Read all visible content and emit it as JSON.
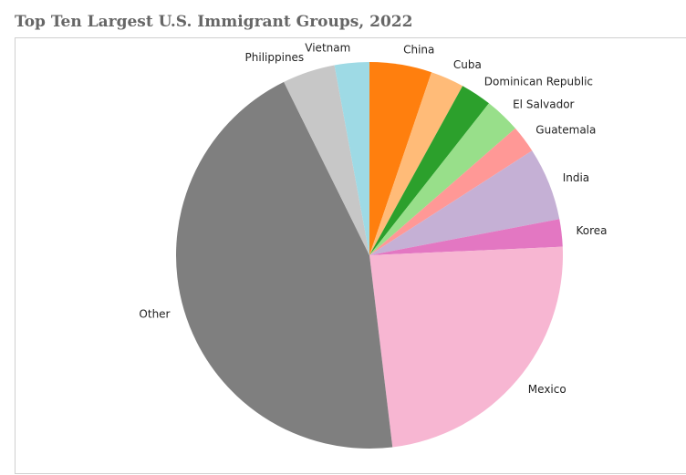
{
  "chart_data": {
    "type": "pie",
    "title": "Top Ten Largest U.S. Immigrant Groups, 2022",
    "start_direction": "top",
    "rotation": "clockwise",
    "slices": [
      {
        "label": "China",
        "value": 5.2,
        "color": "#ff7f0e"
      },
      {
        "label": "Cuba",
        "value": 2.8,
        "color": "#ffbb78"
      },
      {
        "label": "Dominican Republic",
        "value": 2.6,
        "color": "#2ca02c"
      },
      {
        "label": "El Salvador",
        "value": 3.0,
        "color": "#98df8a"
      },
      {
        "label": "Guatemala",
        "value": 2.3,
        "color": "#ff9896"
      },
      {
        "label": "India",
        "value": 6.1,
        "color": "#c5b0d5"
      },
      {
        "label": "Korea",
        "value": 2.3,
        "color": "#e377c2"
      },
      {
        "label": "Mexico",
        "value": 23.8,
        "color": "#f7b6d2"
      },
      {
        "label": "Other",
        "value": 44.6,
        "color": "#7f7f7f"
      },
      {
        "label": "Philippines",
        "value": 4.4,
        "color": "#c7c7c7"
      },
      {
        "label": "Vietnam",
        "value": 2.9,
        "color": "#9edae5"
      }
    ]
  }
}
